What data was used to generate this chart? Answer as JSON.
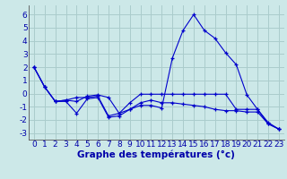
{
  "title": "Graphe des températures (°c)",
  "background_color": "#cce8e8",
  "grid_color": "#aacccc",
  "line_color": "#0000cc",
  "xlim": [
    -0.5,
    23.5
  ],
  "ylim": [
    -3.5,
    6.7
  ],
  "yticks": [
    -3,
    -2,
    -1,
    0,
    1,
    2,
    3,
    4,
    5,
    6
  ],
  "xticks": [
    0,
    1,
    2,
    3,
    4,
    5,
    6,
    7,
    8,
    9,
    10,
    11,
    12,
    13,
    14,
    15,
    16,
    17,
    18,
    19,
    20,
    21,
    22,
    23
  ],
  "series": [
    [
      2.0,
      0.5,
      -0.6,
      -0.6,
      -1.5,
      -0.4,
      -0.3,
      -1.8,
      -1.7,
      -1.2,
      -0.9,
      -0.9,
      -1.1,
      2.7,
      4.8,
      6.0,
      4.8,
      4.2,
      3.1,
      2.2,
      -0.1,
      -1.2,
      -2.2,
      -2.7
    ],
    [
      2.0,
      0.5,
      -0.6,
      -0.5,
      -0.3,
      -0.3,
      -0.2,
      -1.7,
      -1.5,
      -0.7,
      -0.05,
      -0.05,
      -0.05,
      -0.05,
      -0.05,
      -0.05,
      -0.05,
      -0.05,
      -0.05,
      -1.2,
      -1.2,
      -1.2,
      -2.3,
      -2.7
    ],
    [
      2.0,
      0.5,
      -0.6,
      -0.5,
      -0.6,
      -0.2,
      -0.1,
      -0.3,
      -1.5,
      -1.2,
      -0.7,
      -0.5,
      -0.7,
      -0.7,
      -0.8,
      -0.9,
      -1.0,
      -1.2,
      -1.3,
      -1.3,
      -1.4,
      -1.4,
      -2.3,
      -2.7
    ]
  ],
  "xlabel_fontsize": 7.5,
  "tick_fontsize": 6.5,
  "label_color": "#0000aa"
}
